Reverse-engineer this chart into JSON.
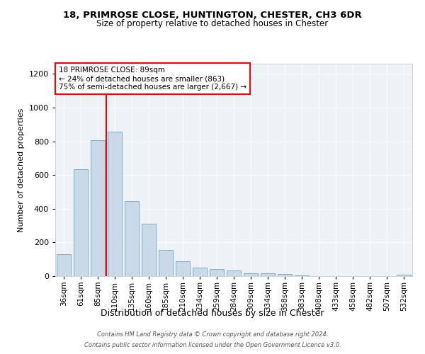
{
  "title1": "18, PRIMROSE CLOSE, HUNTINGTON, CHESTER, CH3 6DR",
  "title2": "Size of property relative to detached houses in Chester",
  "xlabel": "Distribution of detached houses by size in Chester",
  "ylabel": "Number of detached properties",
  "bar_labels": [
    "36sqm",
    "61sqm",
    "85sqm",
    "110sqm",
    "135sqm",
    "160sqm",
    "185sqm",
    "210sqm",
    "234sqm",
    "259sqm",
    "284sqm",
    "309sqm",
    "334sqm",
    "358sqm",
    "383sqm",
    "408sqm",
    "433sqm",
    "458sqm",
    "482sqm",
    "507sqm",
    "532sqm"
  ],
  "bar_values": [
    130,
    635,
    805,
    855,
    445,
    310,
    155,
    90,
    50,
    40,
    35,
    15,
    15,
    12,
    5,
    2,
    0,
    0,
    0,
    0,
    10
  ],
  "bar_color": "#c9d9e8",
  "bar_edge_color": "#7aafc8",
  "annotation_line1": "18 PRIMROSE CLOSE: 89sqm",
  "annotation_line2": "← 24% of detached houses are smaller (863)",
  "annotation_line3": "75% of semi-detached houses are larger (2,667) →",
  "red_line_x": 2.5,
  "ylim": [
    0,
    1260
  ],
  "yticks": [
    0,
    200,
    400,
    600,
    800,
    1000,
    1200
  ],
  "bg_color": "#eef2f7",
  "grid_color": "#ffffff",
  "footer_line1": "Contains HM Land Registry data © Crown copyright and database right 2024.",
  "footer_line2": "Contains public sector information licensed under the Open Government Licence v3.0."
}
